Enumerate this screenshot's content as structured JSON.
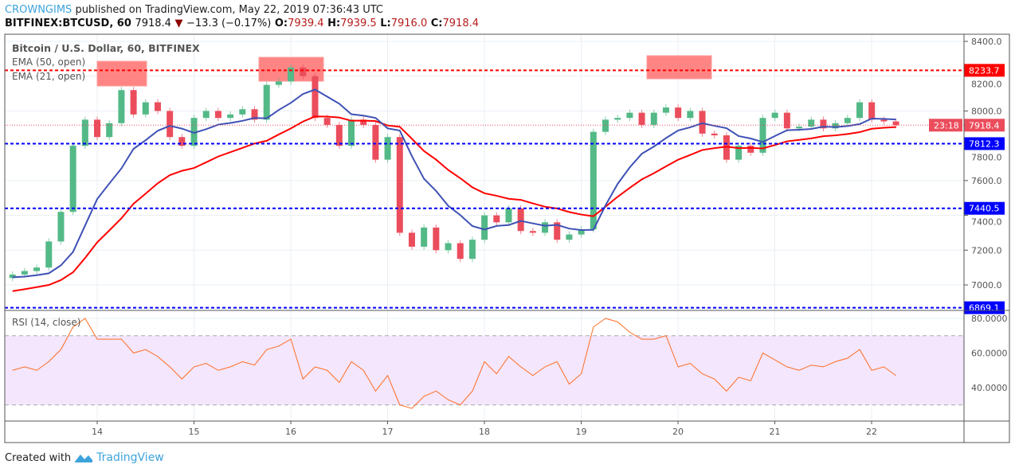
{
  "header": {
    "author": "CROWNGIMS",
    "published_text": "published on TradingView.com, May 22, 2019 07:36:43 UTC",
    "symbol": "BITFINEX:BTCUSD, 60",
    "last": "7918.4",
    "change": "−13.3 (−0.17%)",
    "o_label": "O:",
    "o": "7939.4",
    "h_label": "H:",
    "h": "7939.5",
    "l_label": "L:",
    "l": "7916.0",
    "c_label": "C:",
    "c": "7918.4",
    "direction_icon": "down-triangle-icon"
  },
  "legend": {
    "title": "Bitcoin / U.S. Dollar, 60, BITFINEX",
    "ema50": "EMA (50, open)",
    "ema21": "EMA (21, open)",
    "rsi": "RSI (14, close)"
  },
  "footer": {
    "created_with": "Created with",
    "brand": "TradingView"
  },
  "colors": {
    "up": "#53b987",
    "down": "#eb4d5c",
    "ema50": "#ff0000",
    "ema21": "#3f51b5",
    "rsi": "#ff6d22",
    "rsi_band": "#f3e6fd",
    "support": "#0000ff",
    "resistance": "#ff0000",
    "highlight_box": "#ff7070"
  },
  "chart_data": [
    {
      "type": "candlestick",
      "title": "Bitcoin / U.S. Dollar, 60, BITFINEX",
      "x_ticks": [
        "14",
        "15",
        "16",
        "17",
        "18",
        "19",
        "20",
        "21",
        "22"
      ],
      "y_ticks": [
        "8400.0",
        "8200.0",
        "8000.0",
        "7800.0",
        "7600.0",
        "7400.0",
        "7200.0",
        "7000.0"
      ],
      "ylim": [
        6860,
        8440
      ],
      "grid": true,
      "first_open": 7040,
      "closes": [
        7060,
        7080,
        7100,
        7250,
        7420,
        7800,
        7950,
        7850,
        7930,
        8120,
        7980,
        8050,
        8000,
        7850,
        7800,
        7960,
        8000,
        7960,
        7980,
        8010,
        7950,
        8150,
        8170,
        8250,
        8200,
        7960,
        7920,
        7800,
        7950,
        7920,
        7720,
        7850,
        7300,
        7220,
        7330,
        7200,
        7240,
        7150,
        7260,
        7400,
        7360,
        7440,
        7310,
        7300,
        7360,
        7260,
        7290,
        7320,
        7880,
        7950,
        7960,
        7990,
        7920,
        7990,
        8020,
        7960,
        8000,
        7870,
        7860,
        7720,
        7800,
        7760,
        7960,
        7990,
        7900,
        7910,
        7950,
        7900,
        7930,
        7960,
        8050,
        7950,
        7940,
        7918.4
      ],
      "ema_seed": {
        "ema50": 6955,
        "ema21": 7045
      },
      "horizontal_levels": [
        {
          "value": 8233.7,
          "label": "8233.7",
          "kind": "resistance"
        },
        {
          "value": 7812.3,
          "label": "7812.3",
          "kind": "support"
        },
        {
          "value": 7440.5,
          "label": "7440.5",
          "kind": "support"
        },
        {
          "value": 6869.1,
          "label": "6869.1",
          "kind": "support"
        }
      ],
      "last_price": {
        "value": 7918.4,
        "label": "7918.4",
        "countdown": "23:18"
      }
    },
    {
      "type": "line",
      "title": "RSI (14, close)",
      "y_ticks": [
        "80.0000",
        "60.0000",
        "40.0000"
      ],
      "ylim": [
        20,
        84
      ],
      "bands": [
        30,
        70
      ],
      "values": [
        50,
        52,
        50,
        55,
        62,
        75,
        80,
        68,
        68,
        68,
        60,
        62,
        58,
        52,
        45,
        52,
        54,
        50,
        52,
        55,
        53,
        62,
        64,
        68,
        45,
        52,
        50,
        43,
        55,
        50,
        38,
        47,
        30,
        28,
        35,
        38,
        33,
        30,
        38,
        55,
        48,
        58,
        52,
        47,
        52,
        55,
        42,
        48,
        75,
        80,
        78,
        72,
        68,
        68,
        70,
        52,
        54,
        48,
        45,
        38,
        46,
        44,
        60,
        56,
        52,
        50,
        53,
        52,
        55,
        57,
        62,
        50,
        52,
        47
      ]
    }
  ]
}
